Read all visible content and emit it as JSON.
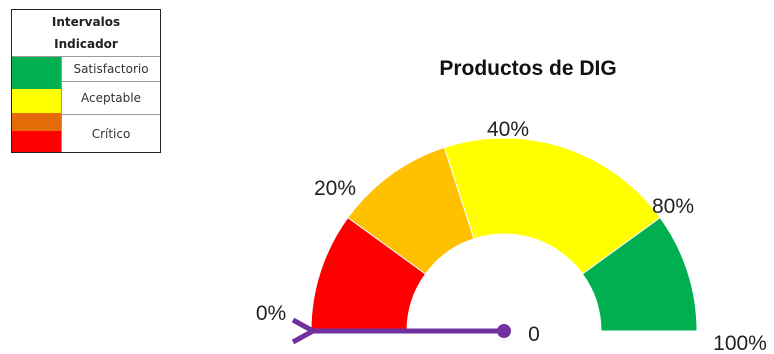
{
  "legend": {
    "title": "Intervalos\nIndicador",
    "items": [
      {
        "label": "Satisfactorio",
        "colors": [
          "#00b050"
        ]
      },
      {
        "label": "Aceptable",
        "colors": [
          "#ffff00"
        ]
      },
      {
        "label": "Crítico",
        "colors": [
          "#e36c09",
          "#ff0000"
        ]
      }
    ]
  },
  "chart_data": {
    "type": "gauge",
    "title": "Productos de DIG",
    "value": 0,
    "value_label": "0",
    "range": [
      0,
      100
    ],
    "bands": [
      {
        "from": 0,
        "to": 20,
        "color": "#ff0000"
      },
      {
        "from": 20,
        "to": 40,
        "color": "#ffc000"
      },
      {
        "from": 40,
        "to": 80,
        "color": "#ffff00"
      },
      {
        "from": 80,
        "to": 100,
        "color": "#00b050"
      }
    ],
    "tick_labels": [
      "0%",
      "20%",
      "40%",
      "80%",
      "100%"
    ],
    "tick_values": [
      0,
      20,
      40,
      80,
      100
    ],
    "needle_color": "#7030a0"
  }
}
